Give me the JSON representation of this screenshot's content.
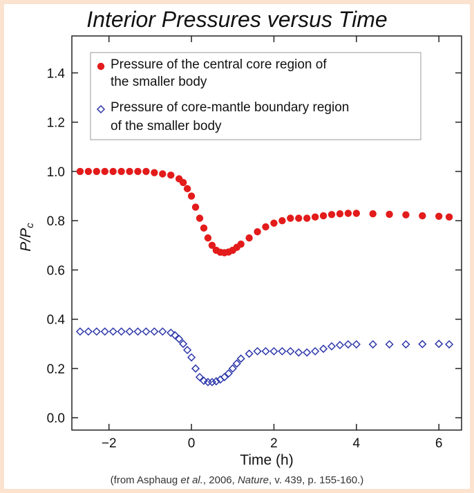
{
  "chart_data": {
    "type": "scatter",
    "title": "Interior Pressures versus Time",
    "xlabel": "Time (h)",
    "ylabel_main": "P/P",
    "ylabel_sub": "c",
    "xlim": [
      -2.9,
      6.55
    ],
    "ylim": [
      -0.05,
      1.55
    ],
    "xticks": [
      -2,
      0,
      2,
      4,
      6
    ],
    "yticks": [
      0.0,
      0.2,
      0.4,
      0.6,
      0.8,
      1.0,
      1.2,
      1.4
    ],
    "legend_position": "top-left",
    "grid": false,
    "series": [
      {
        "name_lines": [
          "Pressure of the central core region of",
          "the smaller body"
        ],
        "marker": "filled-circle",
        "color": "#e31b1b",
        "x": [
          -2.7,
          -2.5,
          -2.3,
          -2.1,
          -1.9,
          -1.7,
          -1.5,
          -1.3,
          -1.1,
          -0.9,
          -0.7,
          -0.5,
          -0.3,
          -0.2,
          -0.1,
          0.0,
          0.1,
          0.2,
          0.3,
          0.4,
          0.5,
          0.6,
          0.7,
          0.8,
          0.9,
          1.0,
          1.1,
          1.2,
          1.4,
          1.6,
          1.8,
          2.0,
          2.2,
          2.4,
          2.6,
          2.8,
          3.0,
          3.2,
          3.4,
          3.6,
          3.8,
          4.0,
          4.4,
          4.8,
          5.2,
          5.6,
          6.0,
          6.25
        ],
        "y": [
          1.0,
          1.0,
          1.0,
          1.0,
          1.0,
          1.0,
          1.0,
          1.0,
          1.0,
          0.995,
          0.99,
          0.985,
          0.97,
          0.955,
          0.93,
          0.9,
          0.855,
          0.81,
          0.77,
          0.73,
          0.7,
          0.68,
          0.672,
          0.67,
          0.673,
          0.68,
          0.692,
          0.705,
          0.73,
          0.755,
          0.775,
          0.79,
          0.8,
          0.81,
          0.81,
          0.81,
          0.815,
          0.82,
          0.825,
          0.828,
          0.83,
          0.83,
          0.828,
          0.826,
          0.824,
          0.82,
          0.818,
          0.815
        ]
      },
      {
        "name_lines": [
          "Pressure of core-mantle boundary region",
          "of the smaller body"
        ],
        "marker": "open-diamond",
        "color": "#2b35a8",
        "x": [
          -2.7,
          -2.5,
          -2.3,
          -2.1,
          -1.9,
          -1.7,
          -1.5,
          -1.3,
          -1.1,
          -0.9,
          -0.7,
          -0.5,
          -0.4,
          -0.3,
          -0.2,
          -0.1,
          0.0,
          0.1,
          0.2,
          0.3,
          0.4,
          0.5,
          0.6,
          0.7,
          0.8,
          0.9,
          1.0,
          1.1,
          1.2,
          1.4,
          1.6,
          1.8,
          2.0,
          2.2,
          2.4,
          2.6,
          2.8,
          3.0,
          3.2,
          3.4,
          3.6,
          3.8,
          4.0,
          4.4,
          4.8,
          5.2,
          5.6,
          6.0,
          6.25
        ],
        "y": [
          0.35,
          0.35,
          0.35,
          0.35,
          0.35,
          0.35,
          0.35,
          0.35,
          0.35,
          0.35,
          0.35,
          0.345,
          0.335,
          0.32,
          0.3,
          0.275,
          0.245,
          0.2,
          0.165,
          0.15,
          0.145,
          0.145,
          0.148,
          0.155,
          0.165,
          0.18,
          0.2,
          0.22,
          0.24,
          0.26,
          0.27,
          0.27,
          0.27,
          0.27,
          0.27,
          0.265,
          0.265,
          0.27,
          0.28,
          0.29,
          0.295,
          0.298,
          0.298,
          0.298,
          0.298,
          0.298,
          0.299,
          0.3,
          0.298
        ]
      }
    ]
  },
  "credit": {
    "pre": "(from Asphaug ",
    "et_al": "et al.",
    "mid": ", 2006, ",
    "journal": "Nature",
    "post": ", v. 439, p. 155-160.)"
  }
}
